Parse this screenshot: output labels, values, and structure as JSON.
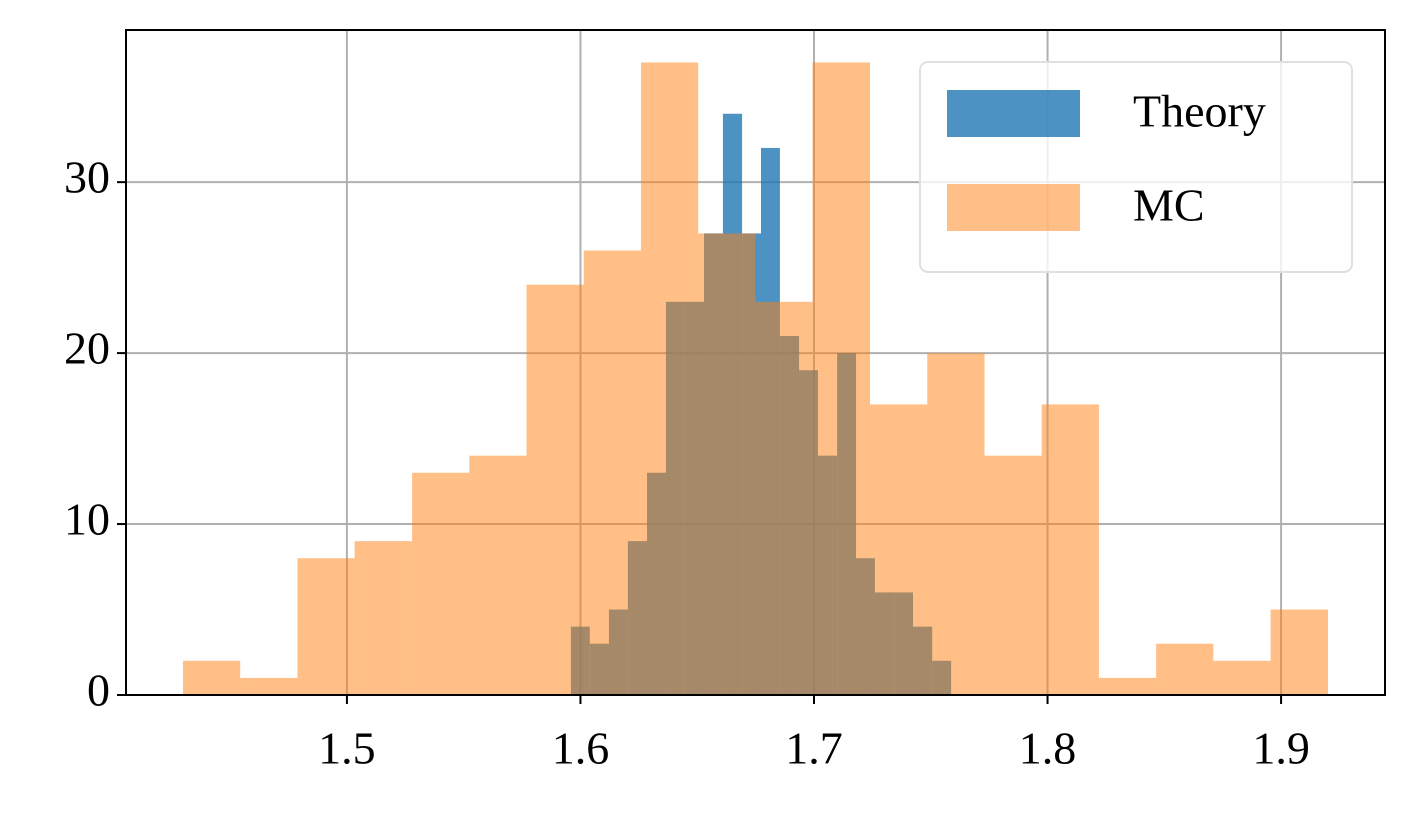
{
  "chart_data": {
    "type": "histogram",
    "series": [
      {
        "name": "Theory",
        "color": "#1f77b4",
        "bins": [
          1.5959,
          1.604,
          1.6122,
          1.6203,
          1.6285,
          1.6366,
          1.6447,
          1.6529,
          1.661,
          1.6692,
          1.6773,
          1.6854,
          1.6936,
          1.7017,
          1.7099,
          1.718,
          1.7261,
          1.7343,
          1.7424,
          1.7506,
          1.7587
        ],
        "values": [
          4,
          3,
          5,
          9,
          13,
          23,
          23,
          27,
          34,
          27,
          32,
          21,
          19,
          14,
          20,
          8,
          6,
          6,
          4,
          2
        ]
      },
      {
        "name": "MC",
        "color": "#ff7f0e",
        "bins": [
          1.4298,
          1.4543,
          1.4788,
          1.5033,
          1.5279,
          1.5524,
          1.5769,
          1.6014,
          1.6259,
          1.6504,
          1.6749,
          1.6994,
          1.724,
          1.7485,
          1.773,
          1.7975,
          1.822,
          1.8465,
          1.871,
          1.8955,
          1.9201
        ],
        "values": [
          2,
          1,
          8,
          9,
          13,
          14,
          24,
          26,
          37,
          27,
          23,
          37,
          17,
          20,
          14,
          17,
          1,
          3,
          2,
          5
        ]
      }
    ],
    "xlim": [
      1.4054,
      1.9445
    ],
    "xticks": [
      1.5,
      1.6,
      1.7,
      1.8,
      1.9
    ],
    "ylim": [
      0,
      38.9
    ],
    "yticks": [
      0,
      10,
      20,
      30
    ],
    "grid": true,
    "legend": "upper right"
  }
}
